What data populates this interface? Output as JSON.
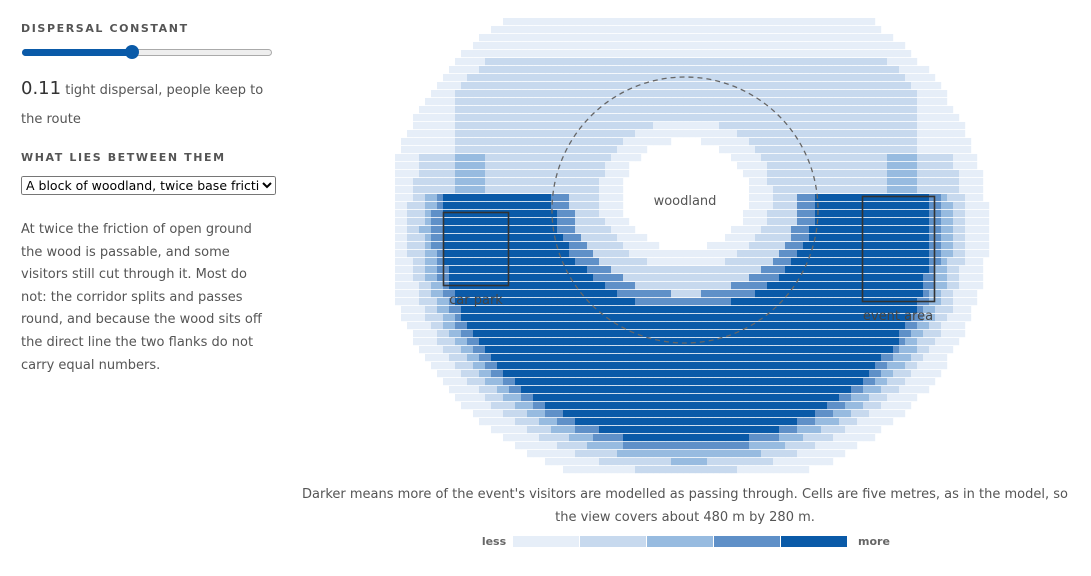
{
  "controls": {
    "dispersal_label": "DISPERSAL CONSTANT",
    "dispersal_value": "0.11",
    "dispersal_note": "tight dispersal, people keep to the route",
    "between_label": "WHAT LIES BETWEEN THEM",
    "between_option": "A block of woodland, twice base friction",
    "description": "At twice the friction of open ground the wood is passable, and some visitors still cut through it. Most do not: the corridor splits and passes round, and because the wood sits off the direct line the two flanks do not carry equal numbers."
  },
  "map": {
    "labels": {
      "woodland": "woodland",
      "car_park": "car park",
      "event_area": "event area"
    },
    "caption": "Darker means more of the event's visitors are modelled as passing through. Cells are five metres, as in the model, so the view covers about 480 m by 280 m.",
    "legend": {
      "less": "less",
      "more": "more",
      "colors": [
        "#e6eef8",
        "#c7d9ee",
        "#97bbe0",
        "#5f90c8",
        "#0a5aa8"
      ]
    }
  }
}
